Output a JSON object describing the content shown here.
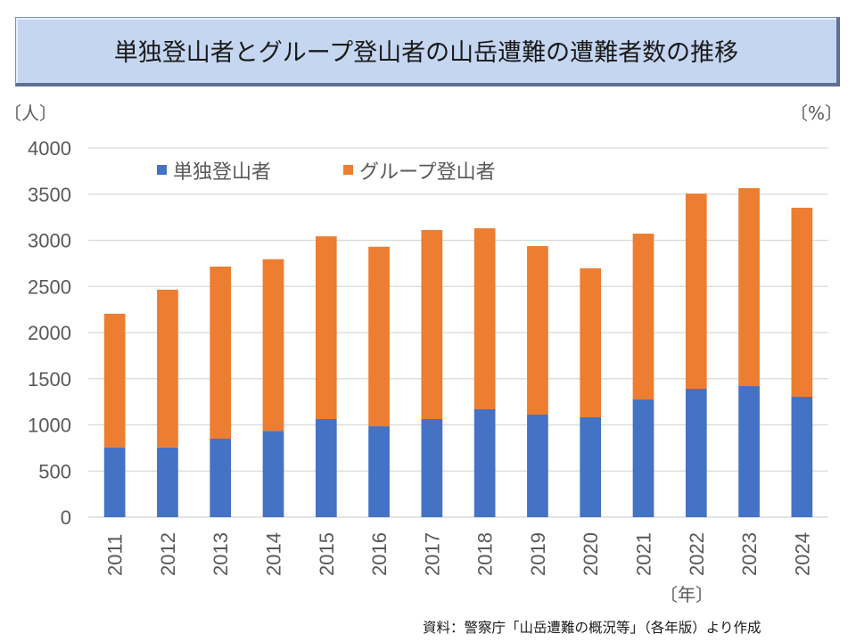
{
  "title": "単独登山者とグループ登山者の山岳遭難の遭難者数の推移",
  "y_unit_left": "〔人〕",
  "y_unit_right": "〔%〕",
  "x_unit": "〔年〕",
  "source": "資料：警察庁「山岳遭難の概況等」（各年版）より作成",
  "chart_data": {
    "type": "bar",
    "stacked": true,
    "title": "単独登山者とグループ登山者の山岳遭難の遭難者数の推移",
    "xlabel": "〔年〕",
    "ylabel": "〔人〕",
    "ylabel_right": "〔%〕",
    "ylim": [
      0,
      4000
    ],
    "yticks": [
      0,
      500,
      1000,
      1500,
      2000,
      2500,
      3000,
      3500,
      4000
    ],
    "grid": true,
    "legend_position": "top-left-inside",
    "categories": [
      "2011",
      "2012",
      "2013",
      "2014",
      "2015",
      "2016",
      "2017",
      "2018",
      "2019",
      "2020",
      "2021",
      "2022",
      "2023",
      "2024"
    ],
    "series": [
      {
        "name": "単独登山者",
        "color": "#4472c4",
        "values": [
          754,
          755,
          850,
          935,
          1063,
          985,
          1063,
          1169,
          1111,
          1082,
          1275,
          1391,
          1420,
          1304
        ]
      },
      {
        "name": "グループ登山者",
        "color": "#ed7d31",
        "values": [
          1450,
          1710,
          1865,
          1860,
          1980,
          1945,
          2048,
          1961,
          1826,
          1615,
          1797,
          2115,
          2145,
          2049
        ]
      }
    ],
    "totals": [
      2204,
      2465,
      2715,
      2795,
      3043,
      2930,
      3111,
      3130,
      2937,
      2697,
      3072,
      3506,
      3565,
      3353
    ]
  }
}
